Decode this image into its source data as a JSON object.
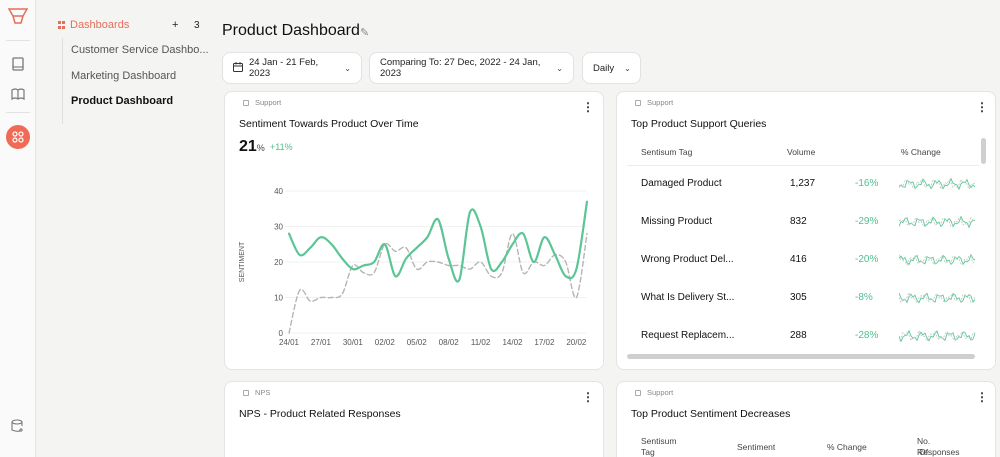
{
  "nav": {
    "section_label": "Dashboards",
    "add_label": "+",
    "count": "3",
    "items": [
      {
        "label": "Customer Service Dashbo..."
      },
      {
        "label": "Marketing Dashboard"
      },
      {
        "label": "Product Dashboard"
      }
    ]
  },
  "header": {
    "title": "Product Dashboard",
    "date_range": "24 Jan - 21 Feb, 2023",
    "comparing": "Comparing To: 27 Dec, 2022 - 24 Jan, 2023",
    "granularity": "Daily"
  },
  "cards": {
    "sentiment": {
      "tag": "Support",
      "title": "Sentiment Towards Product Over Time",
      "value": "21",
      "unit": "%",
      "delta": "+11%"
    },
    "queries": {
      "tag": "Support",
      "title": "Top Product Support Queries",
      "columns": [
        "Sentisum Tag",
        "Volume",
        "% Change"
      ],
      "rows": [
        {
          "tag": "Damaged Product",
          "volume": "1,237",
          "change": "-16%"
        },
        {
          "tag": "Missing Product",
          "volume": "832",
          "change": "-29%"
        },
        {
          "tag": "Wrong Product Del...",
          "volume": "416",
          "change": "-20%"
        },
        {
          "tag": "What Is Delivery St...",
          "volume": "305",
          "change": "-8%"
        },
        {
          "tag": "Request Replacem...",
          "volume": "288",
          "change": "-28%"
        }
      ]
    },
    "nps": {
      "tag": "NPS",
      "title": "NPS - Product Related Responses"
    },
    "decreases": {
      "tag": "Support",
      "title": "Top Product Sentiment Decreases",
      "col1a": "Sentisum",
      "col1b": "Tag",
      "col2": "Sentiment",
      "col3": "% Change",
      "col4a": "No. Of",
      "col4b": "Responses"
    }
  },
  "colors": {
    "accent": "#e36f5c",
    "current": "#5cc596",
    "previous": "#b5b5b5"
  },
  "chart_data": {
    "type": "line",
    "title": "Sentiment Towards Product Over Time",
    "ylabel": "SENTIMENT",
    "xlabel": "",
    "ylim": [
      0,
      40
    ],
    "yticks": [
      0,
      10,
      20,
      30,
      40
    ],
    "xticks": [
      "24/01",
      "27/01",
      "30/01",
      "02/02",
      "05/02",
      "08/02",
      "11/02",
      "14/02",
      "17/02",
      "20/02"
    ],
    "x": [
      "24/01",
      "25/01",
      "26/01",
      "27/01",
      "28/01",
      "29/01",
      "30/01",
      "31/01",
      "01/02",
      "02/02",
      "03/02",
      "04/02",
      "05/02",
      "06/02",
      "07/02",
      "08/02",
      "09/02",
      "10/02",
      "11/02",
      "12/02",
      "13/02",
      "14/02",
      "15/02",
      "16/02",
      "17/02",
      "18/02",
      "19/02",
      "20/02",
      "21/02"
    ],
    "series": [
      {
        "values": [
          28,
          22,
          24,
          27,
          25,
          21,
          18,
          19,
          20,
          25,
          16,
          21,
          24,
          27,
          32,
          21,
          15,
          34,
          30,
          18,
          20,
          25,
          28,
          20,
          27,
          22,
          16,
          18,
          37
        ],
        "color": "#5cc596",
        "style": "solid"
      },
      {
        "values": [
          0,
          12,
          9,
          10,
          10,
          11,
          19,
          17,
          17,
          25,
          23,
          24,
          18,
          20,
          20,
          19,
          19,
          18,
          20,
          16,
          17,
          28,
          17,
          20,
          19,
          22,
          20,
          10,
          28
        ],
        "color": "#b5b5b5",
        "style": "dashed"
      }
    ]
  }
}
